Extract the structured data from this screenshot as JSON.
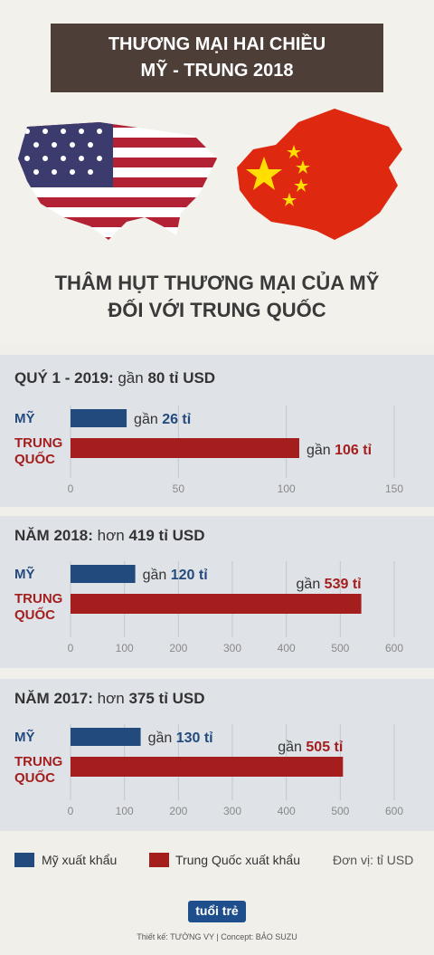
{
  "header": {
    "title_line1": "THƯƠNG MẠI HAI CHIỀU",
    "title_line2": "MỸ - TRUNG 2018"
  },
  "heading": {
    "line1": "THÂM HỤT THƯƠNG MẠI CỦA MỸ",
    "line2": "ĐỐI VỚI TRUNG QUỐC"
  },
  "colors": {
    "us": "#234a7c",
    "cn": "#a41e1e",
    "panel": "#dfe3e8",
    "title_bg": "#4d3e38"
  },
  "chart_data": [
    {
      "type": "bar",
      "title_prefix": "QUÝ 1 - 2019:",
      "title_qualifier": "gần",
      "title_value": "80 tỉ USD",
      "categories": [
        "MỸ",
        "TRUNG QUỐC"
      ],
      "values": [
        26,
        106
      ],
      "value_labels": [
        {
          "prefix": "gần",
          "value": "26 tỉ"
        },
        {
          "prefix": "gần",
          "value": "106 tỉ"
        }
      ],
      "xlim": [
        0,
        150
      ],
      "ticks": [
        0,
        50,
        100,
        150
      ]
    },
    {
      "type": "bar",
      "title_prefix": "NĂM 2018:",
      "title_qualifier": "hơn",
      "title_value": "419 tỉ USD",
      "categories": [
        "MỸ",
        "TRUNG QUỐC"
      ],
      "values": [
        120,
        539
      ],
      "value_labels": [
        {
          "prefix": "gần",
          "value": "120 tỉ"
        },
        {
          "prefix": "gần",
          "value": "539 tỉ"
        }
      ],
      "xlim": [
        0,
        600
      ],
      "ticks": [
        0,
        100,
        200,
        300,
        400,
        500,
        600
      ]
    },
    {
      "type": "bar",
      "title_prefix": "NĂM 2017:",
      "title_qualifier": "hơn",
      "title_value": "375 tỉ USD",
      "categories": [
        "MỸ",
        "TRUNG QUỐC"
      ],
      "values": [
        130,
        505
      ],
      "value_labels": [
        {
          "prefix": "gần",
          "value": "130 tỉ"
        },
        {
          "prefix": "gần",
          "value": "505 tỉ"
        }
      ],
      "xlim": [
        0,
        600
      ],
      "ticks": [
        0,
        100,
        200,
        300,
        400,
        500,
        600
      ]
    }
  ],
  "legend": {
    "us": "Mỹ xuất khẩu",
    "cn": "Trung Quốc xuất khẩu",
    "unit": "Đơn vị: tỉ USD"
  },
  "logo": {
    "text": "tuổi trẻ"
  },
  "credit": "Thiết kế: TƯỜNG VY | Concept: BẢO SUZU"
}
